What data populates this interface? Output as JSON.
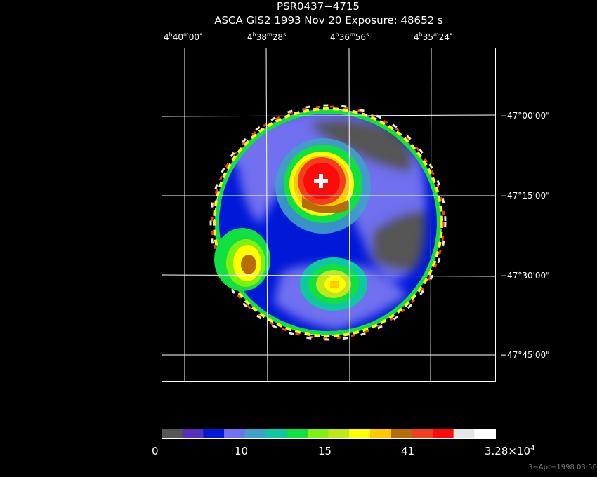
{
  "header": {
    "title": "PSR0437−4715",
    "subtitle": "ASCA GIS2    1993 Nov 20    Exposure: 48652 s"
  },
  "ra_ticks": [
    {
      "h": "4",
      "m": "40",
      "s": "00"
    },
    {
      "h": "4",
      "m": "38",
      "s": "28"
    },
    {
      "h": "4",
      "m": "36",
      "s": "56"
    },
    {
      "h": "4",
      "m": "35",
      "s": "24"
    }
  ],
  "dec_ticks": [
    "−47°00'00\"",
    "−47°15'00\"",
    "−47°30'00\"",
    "−47°45'00\""
  ],
  "colorbar": {
    "colors": [
      "#555555",
      "#5530b8",
      "#0018d8",
      "#7070f0",
      "#40a0c8",
      "#10c8a0",
      "#10e040",
      "#80f010",
      "#c0e818",
      "#ffff00",
      "#ffc800",
      "#b86c08",
      "#f04020",
      "#ff0a0a",
      "#e6e6e6",
      "#ffffff"
    ],
    "labels": [
      "0",
      "10",
      "15",
      "41",
      "3.28×10"
    ],
    "last_exp": "4"
  },
  "timestamp": "3−Apr−1998 03:56"
}
